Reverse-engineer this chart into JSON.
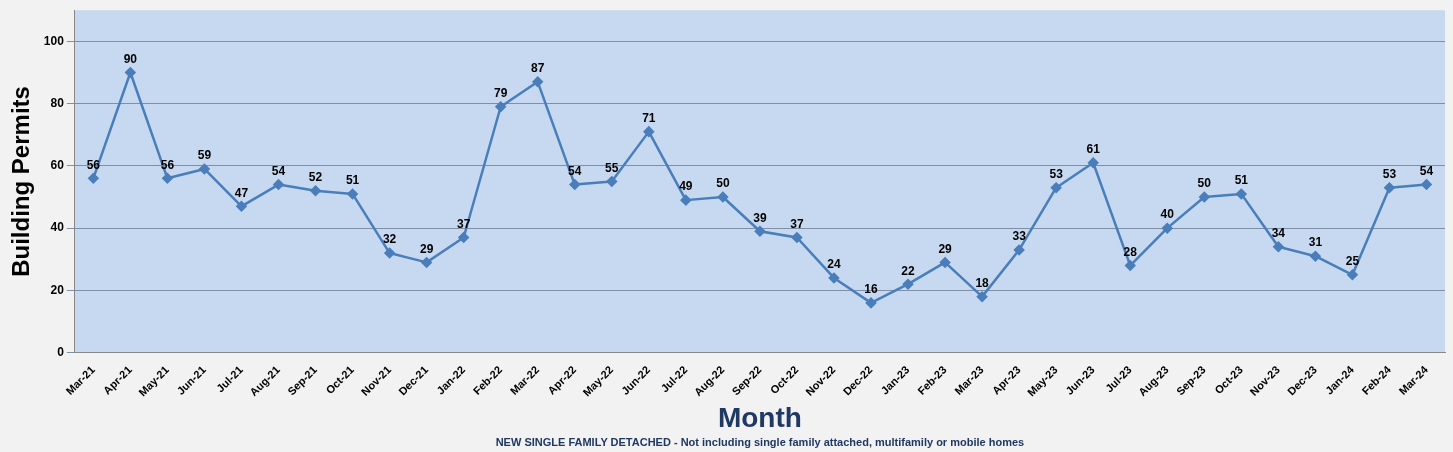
{
  "chart_data": {
    "type": "line",
    "xlabel": "Month",
    "ylabel": "Building Permits",
    "categories": [
      "Mar-21",
      "Apr-21",
      "May-21",
      "Jun-21",
      "Jul-21",
      "Aug-21",
      "Sep-21",
      "Oct-21",
      "Nov-21",
      "Dec-21",
      "Jan-22",
      "Feb-22",
      "Mar-22",
      "Apr-22",
      "May-22",
      "Jun-22",
      "Jul-22",
      "Aug-22",
      "Sep-22",
      "Oct-22",
      "Nov-22",
      "Dec-22",
      "Jan-23",
      "Feb-23",
      "Mar-23",
      "Apr-23",
      "May-23",
      "Jun-23",
      "Jul-23",
      "Aug-23",
      "Sep-23",
      "Oct-23",
      "Nov-23",
      "Dec-23",
      "Jan-24",
      "Feb-24",
      "Mar-24"
    ],
    "series": [
      {
        "color": "#4a7ebb",
        "values": [
          56,
          90,
          56,
          59,
          47,
          54,
          52,
          51,
          32,
          29,
          37,
          79,
          87,
          54,
          55,
          71,
          49,
          50,
          39,
          37,
          24,
          16,
          22,
          29,
          18,
          33,
          53,
          61,
          28,
          40,
          50,
          51,
          34,
          31,
          25,
          53,
          54
        ]
      }
    ],
    "ylim": [
      0,
      110
    ],
    "yticks": [
      0,
      20,
      40,
      60,
      80,
      100
    ],
    "grid": "y",
    "marker": "diamond",
    "line_style": "solid",
    "data_labels": true,
    "legend": false,
    "annotations": [
      "NEW SINGLE FAMILY DETACHED - Not including single family attached, multifamily or mobile homes"
    ]
  }
}
